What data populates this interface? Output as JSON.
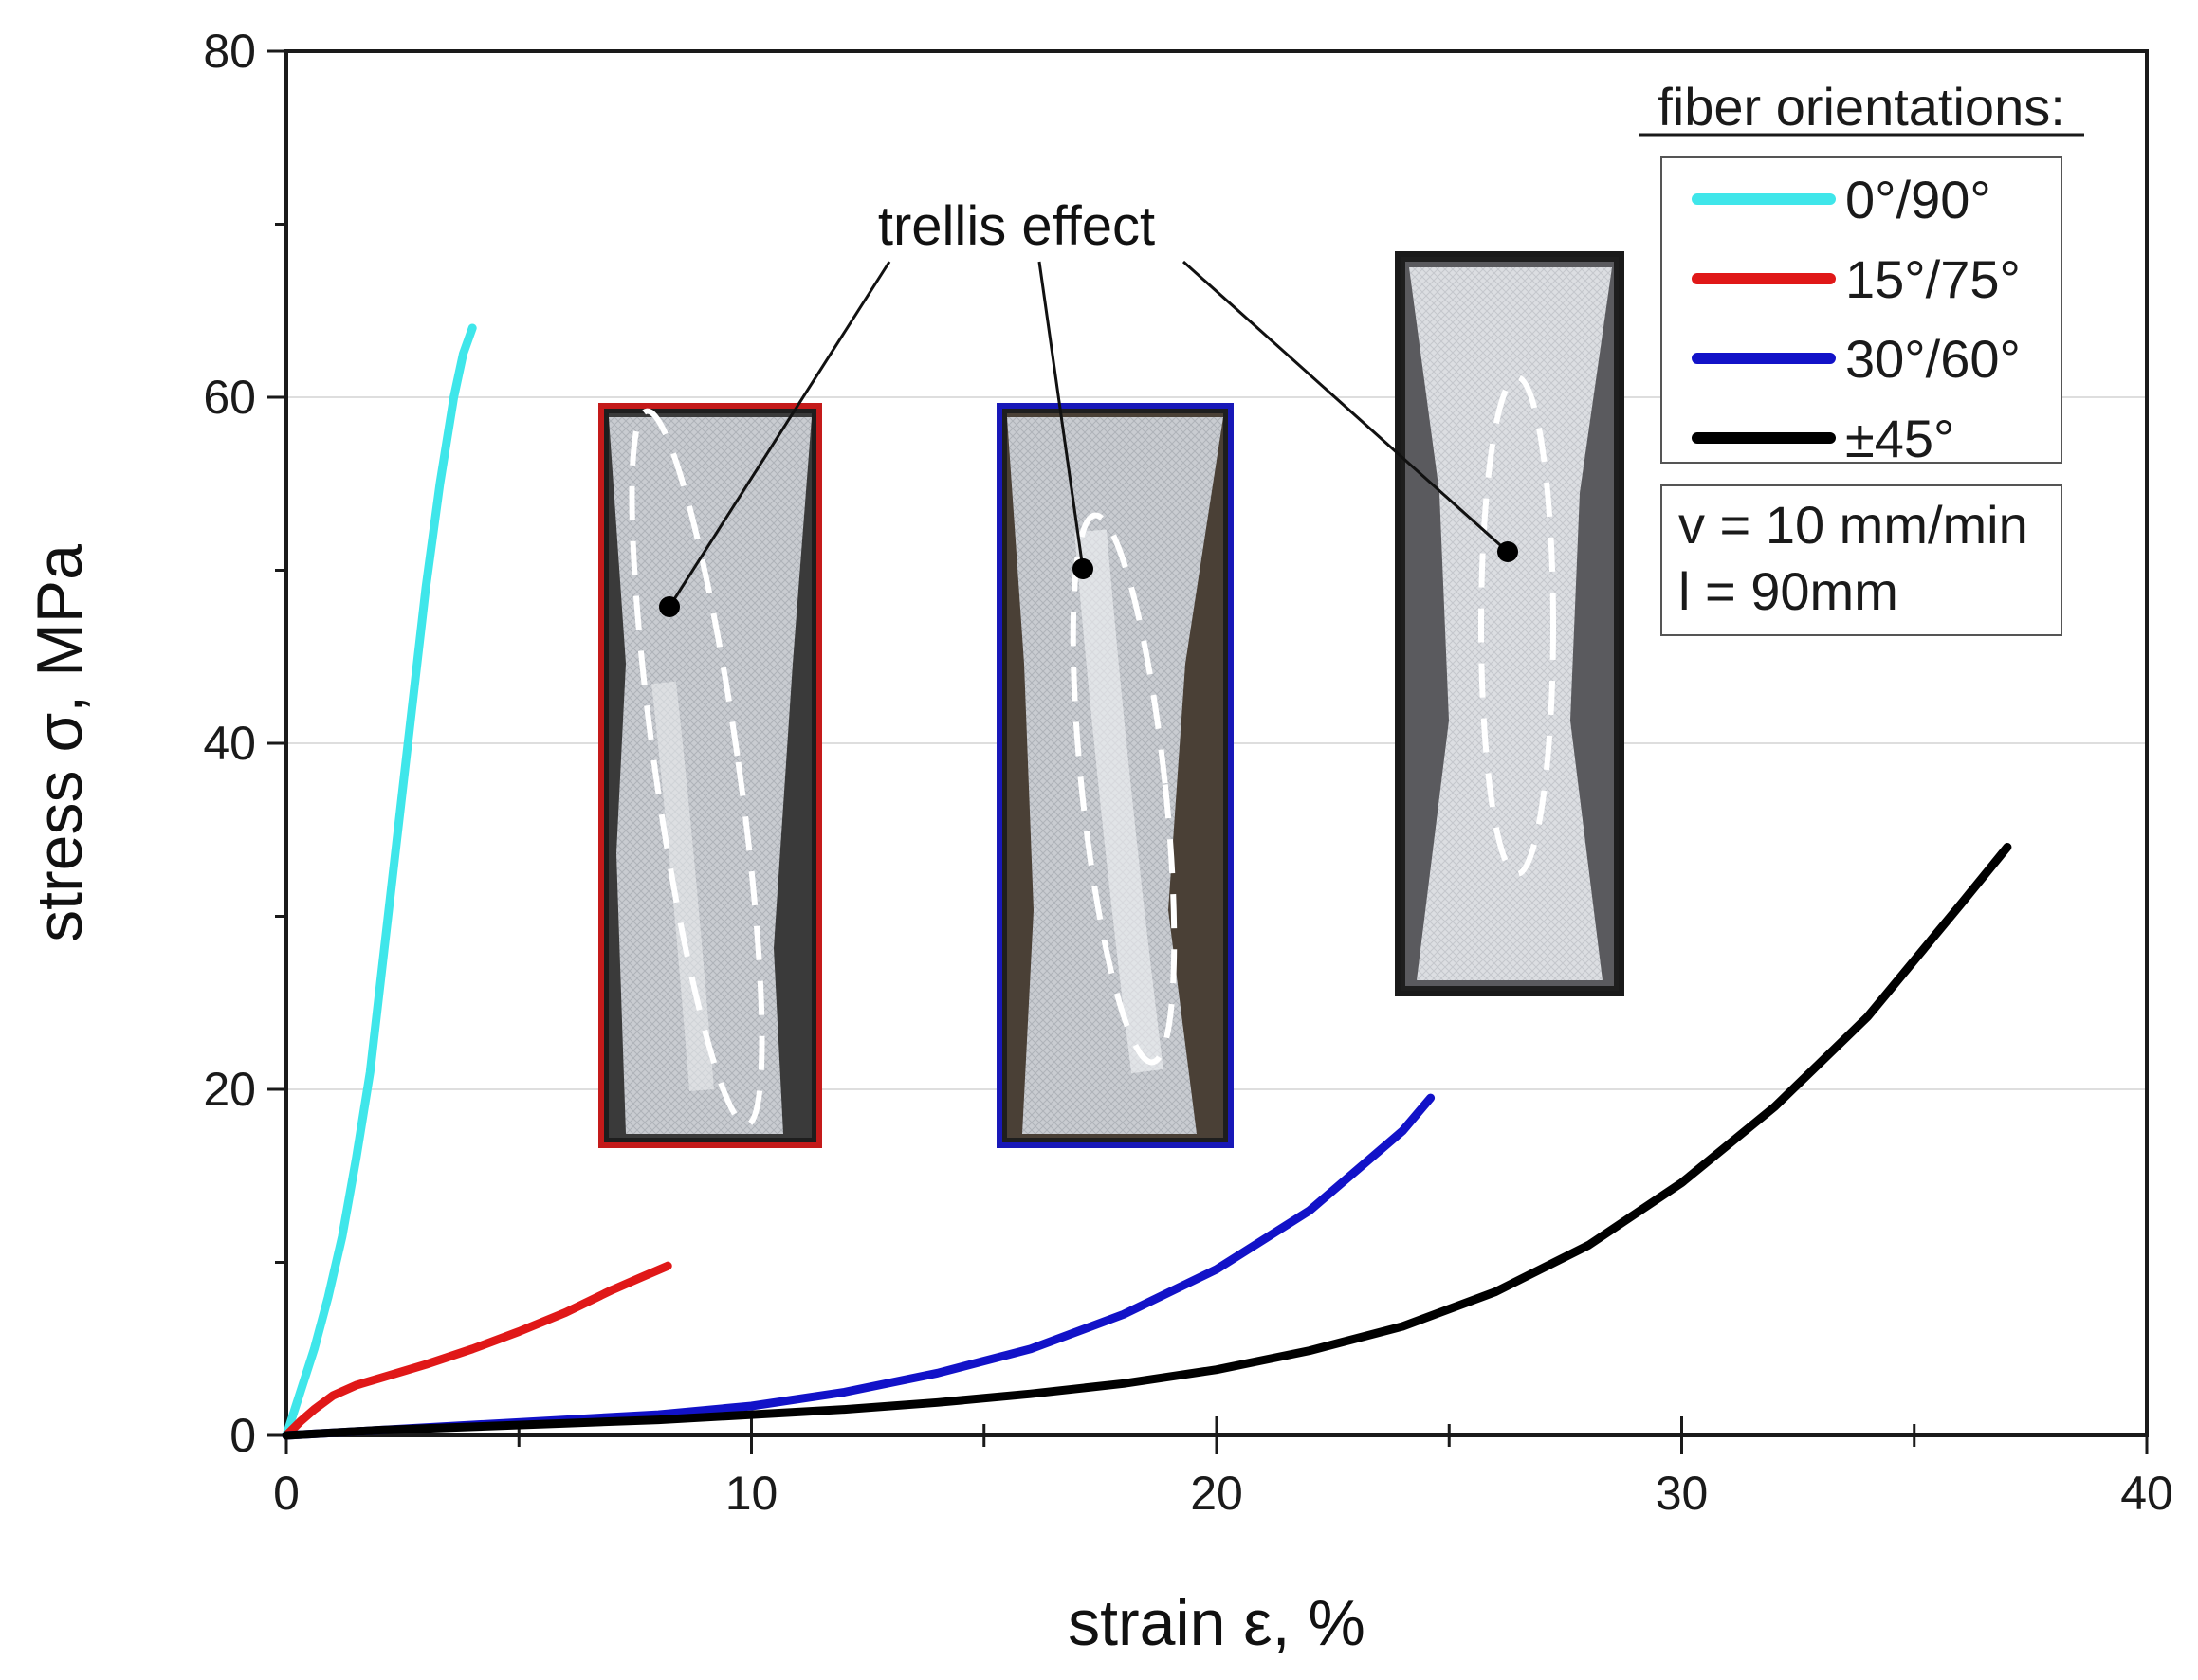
{
  "chart_data": {
    "type": "line",
    "xlabel": "strain ε, %",
    "ylabel": "stress σ, MPa",
    "xlim": [
      0,
      40
    ],
    "ylim": [
      0,
      80
    ],
    "x_ticks": [
      "0",
      "10",
      "20",
      "30",
      "40"
    ],
    "y_ticks": [
      "0",
      "20",
      "40",
      "60",
      "80"
    ],
    "grid": "horizontal light gridlines at major y ticks",
    "legend": {
      "title": "fiber orientations:",
      "placement": "top-right",
      "entries": [
        "0°/90°",
        "15°/75°",
        "30°/60°",
        "±45°"
      ]
    },
    "test_conditions": [
      "v = 10 mm/min",
      "l = 90mm"
    ],
    "annotation": "trellis effect",
    "series": [
      {
        "name": "0°/90°",
        "color": "#3fe6ea",
        "x": [
          0,
          0.3,
          0.6,
          0.9,
          1.2,
          1.5,
          1.8,
          2.1,
          2.4,
          2.7,
          3.0,
          3.3,
          3.6,
          3.8,
          4.0
        ],
        "y": [
          0,
          2.5,
          5,
          8,
          11.5,
          16,
          21,
          28,
          35,
          42,
          49,
          55,
          60,
          62.5,
          64
        ]
      },
      {
        "name": "15°/75°",
        "color": "#e01818",
        "x": [
          0,
          0.3,
          0.6,
          1.0,
          1.5,
          2.0,
          3.0,
          4.0,
          5.0,
          6.0,
          7.0,
          7.6,
          8.2
        ],
        "y": [
          0,
          0.8,
          1.5,
          2.3,
          2.9,
          3.3,
          4.1,
          5.0,
          6.0,
          7.1,
          8.4,
          9.1,
          9.8
        ]
      },
      {
        "name": "30°/60°",
        "color": "#1212c8",
        "x": [
          0,
          2,
          4,
          6,
          8,
          10,
          12,
          14,
          16,
          18,
          20,
          22,
          24,
          24.6
        ],
        "y": [
          0,
          0.3,
          0.6,
          0.9,
          1.2,
          1.7,
          2.5,
          3.6,
          5.0,
          7.0,
          9.6,
          13.0,
          17.6,
          19.5
        ]
      },
      {
        "name": "±45°",
        "color": "#000000",
        "x": [
          0,
          2,
          4,
          6,
          8,
          10,
          12,
          14,
          16,
          18,
          20,
          22,
          24,
          26,
          28,
          30,
          32,
          34,
          36,
          37
        ],
        "y": [
          0,
          0.3,
          0.5,
          0.7,
          0.9,
          1.2,
          1.5,
          1.9,
          2.4,
          3.0,
          3.8,
          4.9,
          6.3,
          8.3,
          11.0,
          14.6,
          19.0,
          24.2,
          30.7,
          34.0
        ]
      }
    ]
  }
}
